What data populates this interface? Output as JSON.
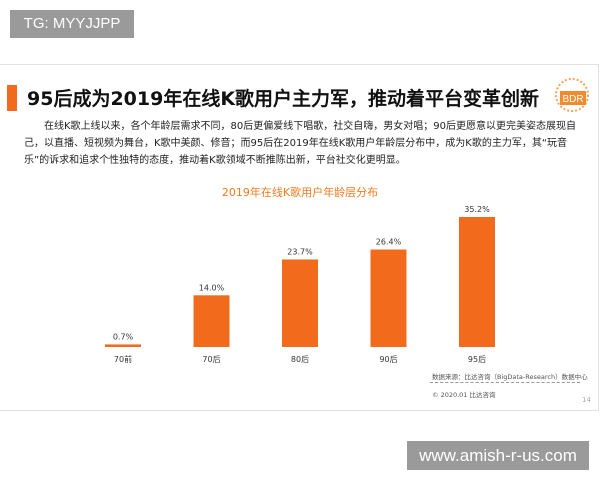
{
  "watermark_top": "TG: MYYJJPP",
  "watermark_bottom": "www.amish-r-us.com",
  "slide": {
    "title": "95后成为2019年在线K歌用户主力军，推动着平台变革创新",
    "logo_text": "BDR",
    "body": "在线K歌上线以来，各个年龄层需求不同，80后更偏爱线下唱歌，社交自嗨，男女对唱；90后更愿意以更完美姿态展现自己，以直播、短视频为舞台，K歌中美颜、修音；而95后在2019年在线K歌用户年龄层分布中，成为K歌的主力军，其“玩音乐”的诉求和追求个性独特的态度，推动着K歌领域不断推陈出新，平台社交化更明显。",
    "source": "数据来源：比达咨询（BigData-Research）数据中心",
    "copyright": "© 2020.01 比达咨询",
    "page": "14"
  },
  "chart_data": {
    "type": "bar",
    "title": "2019年在线K歌用户年龄层分布",
    "categories": [
      "70前",
      "70后",
      "80后",
      "90后",
      "95后"
    ],
    "values": [
      0.7,
      14.0,
      23.7,
      26.4,
      35.2
    ],
    "labels": [
      "0.7%",
      "14.0%",
      "23.7%",
      "26.4%",
      "35.2%"
    ],
    "unit": "%",
    "ylim": [
      0,
      35.2
    ],
    "grid": false,
    "color": "#f26b1d"
  }
}
